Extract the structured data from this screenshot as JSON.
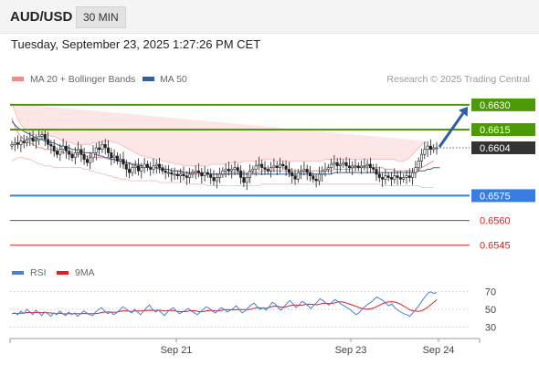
{
  "header": {
    "symbol": "AUD/USD",
    "timeframe": "30 MIN",
    "datetime": "Tuesday, September 23, 2025 1:27:26 PM CET"
  },
  "legend": {
    "bollinger": {
      "label": "MA 20 + Bollinger Bands",
      "color": "#f08c8c"
    },
    "ma50": {
      "label": "MA 50",
      "color": "#3b5e9a"
    },
    "credit": "Research © 2025 Trading Central"
  },
  "rsi_legend": {
    "rsi": {
      "label": "RSI",
      "color": "#4a7fd6"
    },
    "ma9": {
      "label": "9MA",
      "color": "#e02020"
    }
  },
  "chart_data": [
    {
      "type": "candlestick",
      "ylim": [
        0.6536,
        0.6641
      ],
      "levels": [
        {
          "value": 0.663,
          "label": "0.6630",
          "kind": "resistance",
          "color": "#4e9a06"
        },
        {
          "value": 0.6615,
          "label": "0.6615",
          "kind": "resistance",
          "color": "#4e9a06"
        },
        {
          "value": 0.6604,
          "label": "0.6604",
          "kind": "last-price",
          "color": "#333333"
        },
        {
          "value": 0.6575,
          "label": "0.6575",
          "kind": "pivot",
          "color": "#3a7de0"
        },
        {
          "value": 0.656,
          "label": "0.6560",
          "kind": "support",
          "color": "#e02020"
        },
        {
          "value": 0.6545,
          "label": "0.6545",
          "kind": "support",
          "color": "#e02020"
        }
      ],
      "close": [
        0.6606,
        0.6607,
        0.6606,
        0.6608,
        0.6607,
        0.6609,
        0.661,
        0.6608,
        0.6609,
        0.6611,
        0.6612,
        0.6609,
        0.6606,
        0.6605,
        0.6602,
        0.66,
        0.6603,
        0.6605,
        0.6602,
        0.66,
        0.6598,
        0.6601,
        0.6603,
        0.66,
        0.6597,
        0.6595,
        0.6598,
        0.6601,
        0.6604,
        0.6603,
        0.6606,
        0.6604,
        0.6601,
        0.6598,
        0.6599,
        0.6596,
        0.6597,
        0.6594,
        0.6591,
        0.6589,
        0.6592,
        0.6593,
        0.659,
        0.6592,
        0.6594,
        0.6592,
        0.6591,
        0.6593,
        0.6594,
        0.6592,
        0.659,
        0.6589,
        0.6589,
        0.6588,
        0.6588,
        0.6587,
        0.6588,
        0.6587,
        0.6586,
        0.6588,
        0.6589,
        0.659,
        0.6589,
        0.6587,
        0.6589,
        0.6588,
        0.6586,
        0.6584,
        0.6586,
        0.6588,
        0.659,
        0.6591,
        0.659,
        0.6591,
        0.6592,
        0.659,
        0.6586,
        0.6583,
        0.6586,
        0.659,
        0.6591,
        0.6593,
        0.6594,
        0.6592,
        0.6591,
        0.659,
        0.6592,
        0.6593,
        0.6592,
        0.6594,
        0.6593,
        0.6591,
        0.6589,
        0.6587,
        0.6585,
        0.6589,
        0.659,
        0.6591,
        0.6589,
        0.6587,
        0.6585,
        0.6584,
        0.6588,
        0.659,
        0.6591,
        0.6592,
        0.6594,
        0.6595,
        0.6593,
        0.6594,
        0.6595,
        0.6593,
        0.6592,
        0.6593,
        0.6593,
        0.6592,
        0.6593,
        0.6593,
        0.6594,
        0.6592,
        0.6591,
        0.6588,
        0.6586,
        0.6585,
        0.6587,
        0.6586,
        0.6585,
        0.6587,
        0.6586,
        0.6585,
        0.6586,
        0.6587,
        0.6586,
        0.6589,
        0.6592,
        0.6596,
        0.66,
        0.6603,
        0.6605,
        0.6603,
        0.6604,
        0.6604
      ],
      "ma20": [
        0.6622,
        0.6617,
        0.6613,
        0.6611,
        0.6609,
        0.6608,
        0.6607,
        0.6606,
        0.6605,
        0.6604,
        0.6604,
        0.6603,
        0.6603,
        0.6603,
        0.6602,
        0.6602,
        0.6602,
        0.6601,
        0.6601,
        0.6601,
        0.66,
        0.66,
        0.66,
        0.66,
        0.6599,
        0.6599,
        0.6599,
        0.6599,
        0.6598,
        0.6598,
        0.6598,
        0.6598,
        0.6597,
        0.6597,
        0.6597,
        0.6596,
        0.6596,
        0.6595,
        0.6595,
        0.6594,
        0.6594,
        0.6593,
        0.6593,
        0.6593,
        0.6593,
        0.6593,
        0.6592,
        0.6592,
        0.6592,
        0.6592,
        0.6591,
        0.6591,
        0.6591,
        0.659,
        0.659,
        0.659,
        0.6589,
        0.6589,
        0.6589,
        0.6588,
        0.6588,
        0.6588,
        0.6588,
        0.6588,
        0.6588,
        0.6588,
        0.6588,
        0.6588,
        0.6588,
        0.6588,
        0.6588,
        0.6588,
        0.6589,
        0.6589,
        0.6589,
        0.6589,
        0.6589,
        0.6589,
        0.6589,
        0.6589,
        0.6589,
        0.6589,
        0.6589,
        0.659,
        0.659,
        0.659,
        0.659,
        0.659,
        0.659,
        0.659,
        0.659,
        0.659,
        0.659,
        0.659,
        0.659,
        0.659,
        0.659,
        0.659,
        0.659,
        0.659,
        0.659,
        0.659,
        0.659,
        0.659,
        0.659,
        0.659,
        0.659,
        0.6591,
        0.6591,
        0.6591,
        0.6591,
        0.6591,
        0.6591,
        0.6592,
        0.6592,
        0.6592,
        0.6592,
        0.6592,
        0.6592,
        0.6592,
        0.6592,
        0.6592,
        0.6592,
        0.6592,
        0.6591,
        0.6591,
        0.6591,
        0.659,
        0.659,
        0.659,
        0.659,
        0.659,
        0.659,
        0.659,
        0.6591,
        0.6591,
        0.6592,
        0.6593,
        0.6594,
        0.6595,
        0.6596
      ],
      "bb_upper": [
        0.6631,
        0.6626,
        0.6621,
        0.6618,
        0.6616,
        0.6614,
        0.6613,
        0.6612,
        0.6612,
        0.6612,
        0.6612,
        0.6612,
        0.6612,
        0.6611,
        0.6611,
        0.661,
        0.6609,
        0.6608,
        0.6608,
        0.6607,
        0.6607,
        0.6606,
        0.6606,
        0.6606,
        0.6606,
        0.6606,
        0.6606,
        0.6607,
        0.6607,
        0.6607,
        0.6608,
        0.6608,
        0.6608,
        0.6608,
        0.6607,
        0.6607,
        0.6606,
        0.6605,
        0.6604,
        0.6603,
        0.6602,
        0.6601,
        0.66,
        0.6599,
        0.6599,
        0.6598,
        0.6598,
        0.6597,
        0.6597,
        0.6597,
        0.6596,
        0.6596,
        0.6595,
        0.6595,
        0.6594,
        0.6594,
        0.6594,
        0.6593,
        0.6593,
        0.6593,
        0.6593,
        0.6593,
        0.6593,
        0.6593,
        0.6593,
        0.6593,
        0.6594,
        0.6594,
        0.6594,
        0.6594,
        0.6594,
        0.6594,
        0.6595,
        0.6595,
        0.6595,
        0.6595,
        0.6595,
        0.6596,
        0.6596,
        0.6596,
        0.6596,
        0.6596,
        0.6596,
        0.6597,
        0.6597,
        0.6597,
        0.6597,
        0.6596,
        0.6596,
        0.6596,
        0.6596,
        0.6596,
        0.6596,
        0.6596,
        0.6596,
        0.6596,
        0.6596,
        0.6596,
        0.6596,
        0.6596,
        0.6596,
        0.6596,
        0.6596,
        0.6596,
        0.6597,
        0.6597,
        0.6597,
        0.6597,
        0.6597,
        0.6597,
        0.6597,
        0.6597,
        0.6597,
        0.6597,
        0.6597,
        0.6597,
        0.6597,
        0.6597,
        0.6597,
        0.6597,
        0.6597,
        0.6597,
        0.6597,
        0.6597,
        0.6597,
        0.6597,
        0.6597,
        0.6597,
        0.6596,
        0.6596,
        0.6596,
        0.6597,
        0.6598,
        0.66,
        0.6602,
        0.6604,
        0.6606,
        0.6607,
        0.6608
      ],
      "bb_lower": [
        0.6596,
        0.6597,
        0.6598,
        0.6598,
        0.6598,
        0.6597,
        0.6597,
        0.6596,
        0.6595,
        0.6594,
        0.6594,
        0.6593,
        0.6593,
        0.6593,
        0.6592,
        0.6592,
        0.6592,
        0.6592,
        0.6592,
        0.6592,
        0.6592,
        0.6592,
        0.6592,
        0.6592,
        0.6591,
        0.6591,
        0.659,
        0.659,
        0.6589,
        0.6589,
        0.6588,
        0.6588,
        0.6587,
        0.6587,
        0.6586,
        0.6586,
        0.6585,
        0.6585,
        0.6585,
        0.6584,
        0.6584,
        0.6584,
        0.6584,
        0.6584,
        0.6584,
        0.6584,
        0.6584,
        0.6584,
        0.6584,
        0.6583,
        0.6583,
        0.6583,
        0.6583,
        0.6583,
        0.6583,
        0.6583,
        0.6583,
        0.6583,
        0.6583,
        0.6582,
        0.6582,
        0.6582,
        0.6582,
        0.6582,
        0.6582,
        0.6581,
        0.6581,
        0.6581,
        0.6581,
        0.6581,
        0.6581,
        0.6581,
        0.6581,
        0.6581,
        0.6581,
        0.6581,
        0.6581,
        0.6581,
        0.6581,
        0.6581,
        0.6581,
        0.6581,
        0.6581,
        0.6582,
        0.6582,
        0.6582,
        0.6582,
        0.6582,
        0.6582,
        0.6582,
        0.6582,
        0.6582,
        0.6582,
        0.6582,
        0.6582,
        0.6582,
        0.6582,
        0.6582,
        0.6582,
        0.6582,
        0.6582,
        0.6582,
        0.6582,
        0.6582,
        0.6582,
        0.6582,
        0.6582,
        0.6582,
        0.6582,
        0.6582,
        0.6582,
        0.6582,
        0.6582,
        0.6582,
        0.6582,
        0.6582,
        0.6582,
        0.6582,
        0.6582,
        0.6582,
        0.6582,
        0.6582,
        0.6582,
        0.6581,
        0.6581,
        0.6581,
        0.6581,
        0.6581,
        0.6581,
        0.6581,
        0.6581,
        0.6581,
        0.6581,
        0.6581,
        0.6581,
        0.6581,
        0.658,
        0.658,
        0.658,
        0.658,
        0.658
      ],
      "ma50": [
        0.662,
        0.6618,
        0.6616,
        0.6615,
        0.6614,
        0.6613,
        0.6612,
        0.6611,
        0.661,
        0.6609,
        0.6609,
        0.6608,
        0.6608,
        0.6607,
        0.6607,
        0.6606,
        0.6605,
        0.6605,
        0.6604,
        0.6604,
        0.6603,
        0.6603,
        0.6602,
        0.6602,
        0.6601,
        0.6601,
        0.6601,
        0.66,
        0.66,
        0.6599,
        0.6599,
        0.6598,
        0.6598,
        0.6597,
        0.6597,
        0.6596,
        0.6596,
        0.6596,
        0.6595,
        0.6595,
        0.6594,
        0.6594,
        0.6594,
        0.6593,
        0.6593,
        0.6593,
        0.6592,
        0.6592,
        0.6592,
        0.6591,
        0.6591,
        0.6591,
        0.6591,
        0.659,
        0.659,
        0.659,
        0.659,
        0.6589,
        0.6589,
        0.6589,
        0.6589,
        0.6589,
        0.6589,
        0.6588,
        0.6588,
        0.6588,
        0.6588,
        0.6588,
        0.6588,
        0.6588,
        0.6588,
        0.6588,
        0.6588,
        0.6588,
        0.6588,
        0.6588,
        0.6588,
        0.6588,
        0.6588,
        0.6588,
        0.6588,
        0.6588,
        0.6588,
        0.6588,
        0.6588,
        0.6588,
        0.6588,
        0.6588,
        0.6588,
        0.6588,
        0.6588,
        0.6588,
        0.6588,
        0.6588,
        0.6588,
        0.6588,
        0.6588,
        0.6588,
        0.6588,
        0.6588,
        0.6588,
        0.6588,
        0.6588,
        0.6588,
        0.6588,
        0.6588,
        0.6588,
        0.6589,
        0.6589,
        0.6589,
        0.6589,
        0.6589,
        0.6589,
        0.6589,
        0.6589,
        0.6589,
        0.6589,
        0.6589,
        0.6589,
        0.6589,
        0.6589,
        0.6589,
        0.6589,
        0.6589,
        0.6589,
        0.6589,
        0.6589,
        0.6589,
        0.6589,
        0.6589,
        0.6589,
        0.6589,
        0.6589,
        0.6589,
        0.6589,
        0.659,
        0.659,
        0.659,
        0.6591,
        0.6591,
        0.6592,
        0.6592,
        0.6592
      ],
      "forecast": {
        "from": 0.6604,
        "to": 0.663
      }
    },
    {
      "type": "line",
      "ylim": [
        20,
        80
      ],
      "ticks": [
        "70",
        "50",
        "30"
      ],
      "guides": [
        70,
        50,
        30
      ],
      "rsi": [
        45,
        46,
        44,
        48,
        45,
        50,
        47,
        44,
        49,
        46,
        43,
        47,
        45,
        42,
        46,
        44,
        48,
        45,
        43,
        47,
        44,
        46,
        42,
        45,
        48,
        46,
        44,
        43,
        47,
        50,
        52,
        48,
        45,
        47,
        44,
        46,
        49,
        53,
        51,
        48,
        46,
        50,
        47,
        44,
        48,
        52,
        55,
        50,
        47,
        49,
        46,
        43,
        47,
        50,
        52,
        48,
        45,
        47,
        49,
        51,
        48,
        46,
        44,
        47,
        50,
        53,
        51,
        48,
        46,
        49,
        52,
        50,
        47,
        49,
        51,
        54,
        50,
        46,
        48,
        52,
        55,
        57,
        53,
        50,
        52,
        49,
        53,
        58,
        56,
        52,
        49,
        53,
        57,
        60,
        56,
        52,
        55,
        59,
        57,
        54,
        51,
        55,
        58,
        62,
        60,
        57,
        55,
        58,
        61,
        59,
        56,
        54,
        52,
        50,
        47,
        44,
        46,
        50,
        53,
        56,
        58,
        61,
        64,
        62,
        60,
        57,
        54,
        56,
        52,
        49,
        47,
        45,
        44,
        42,
        46,
        50,
        54,
        59,
        64,
        68,
        70,
        68,
        69
      ]
    }
  ],
  "axis": {
    "x_labels": [
      "Sep 21",
      "Sep 23",
      "Sep 24"
    ]
  }
}
